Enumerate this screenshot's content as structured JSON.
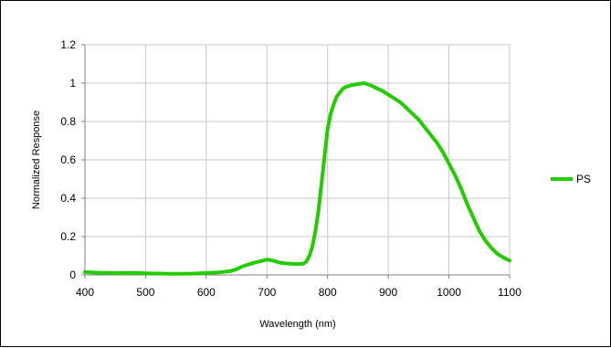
{
  "chart_data": {
    "type": "line",
    "title": "",
    "xlabel": "Wavelength (nm)",
    "ylabel": "Normalized Response",
    "xlim": [
      400,
      1100
    ],
    "ylim": [
      0,
      1.2
    ],
    "grid": true,
    "legend_position": "right",
    "x_ticks": [
      "400",
      "500",
      "600",
      "700",
      "800",
      "900",
      "1000",
      "1100"
    ],
    "y_ticks": [
      "0",
      "0.2",
      "0.4",
      "0.6",
      "0.8",
      "1",
      "1.2"
    ],
    "series": [
      {
        "name": "PS",
        "color": "#22cc00",
        "x": [
          400,
          420,
          440,
          460,
          480,
          500,
          520,
          540,
          560,
          580,
          600,
          620,
          640,
          650,
          660,
          670,
          680,
          690,
          700,
          710,
          720,
          730,
          740,
          750,
          760,
          765,
          770,
          775,
          780,
          785,
          790,
          795,
          800,
          805,
          810,
          815,
          820,
          825,
          830,
          835,
          840,
          850,
          860,
          870,
          880,
          890,
          900,
          910,
          920,
          930,
          940,
          950,
          960,
          970,
          980,
          990,
          1000,
          1010,
          1020,
          1030,
          1040,
          1050,
          1060,
          1070,
          1080,
          1090,
          1100
        ],
        "y": [
          0.015,
          0.012,
          0.01,
          0.01,
          0.011,
          0.008,
          0.007,
          0.006,
          0.006,
          0.007,
          0.01,
          0.013,
          0.02,
          0.03,
          0.045,
          0.055,
          0.065,
          0.072,
          0.08,
          0.075,
          0.065,
          0.06,
          0.058,
          0.057,
          0.058,
          0.07,
          0.1,
          0.15,
          0.23,
          0.34,
          0.48,
          0.62,
          0.76,
          0.84,
          0.89,
          0.93,
          0.95,
          0.97,
          0.98,
          0.985,
          0.99,
          0.995,
          1.0,
          0.99,
          0.975,
          0.96,
          0.94,
          0.92,
          0.9,
          0.87,
          0.84,
          0.81,
          0.77,
          0.73,
          0.69,
          0.64,
          0.58,
          0.52,
          0.45,
          0.37,
          0.3,
          0.23,
          0.18,
          0.14,
          0.11,
          0.09,
          0.075
        ]
      }
    ]
  }
}
